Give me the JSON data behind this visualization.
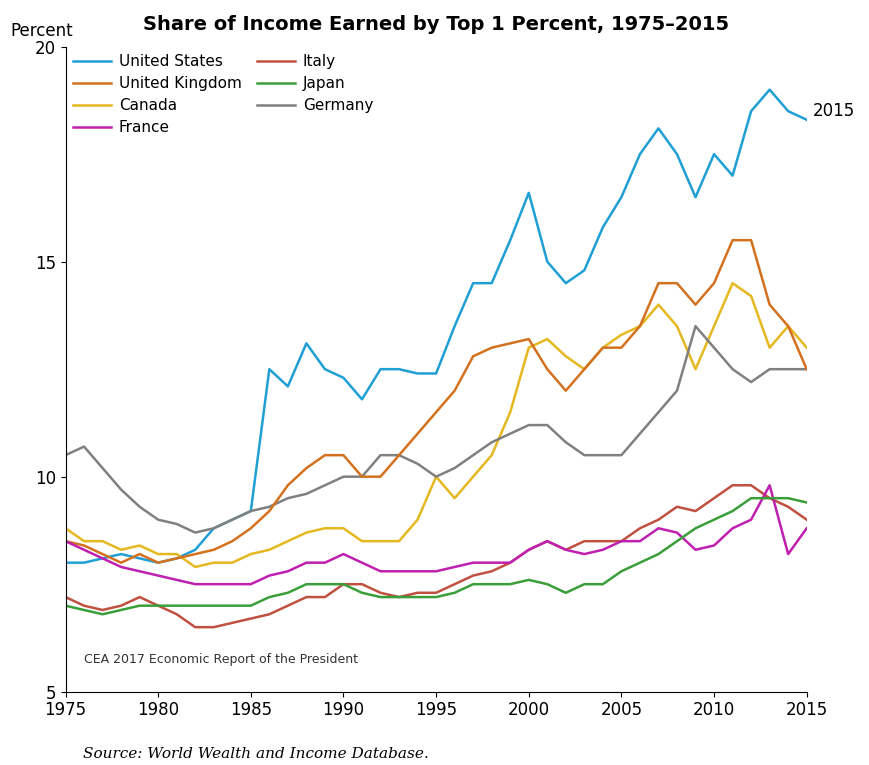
{
  "title": "Share of Income Earned by Top 1 Percent, 1975–2015",
  "ylabel": "Percent",
  "source_text": "Source: World Wealth and Income Database.",
  "watermark": "CEA 2017 Economic Report of the President",
  "annotation_2015": "2015",
  "ylim": [
    5,
    20
  ],
  "yticks": [
    5,
    10,
    15,
    20
  ],
  "xlim": [
    1975,
    2015
  ],
  "xticks": [
    1975,
    1980,
    1985,
    1990,
    1995,
    2000,
    2005,
    2010,
    2015
  ],
  "series": {
    "United States": {
      "color": "#1f9fd4",
      "years": [
        1975,
        1976,
        1977,
        1978,
        1979,
        1980,
        1981,
        1982,
        1983,
        1984,
        1985,
        1986,
        1987,
        1988,
        1989,
        1990,
        1991,
        1992,
        1993,
        1994,
        1995,
        1996,
        1997,
        1998,
        1999,
        2000,
        2001,
        2002,
        2003,
        2004,
        2005,
        2006,
        2007,
        2008,
        2009,
        2010,
        2011,
        2012,
        2013,
        2014,
        2015
      ],
      "values": [
        8.0,
        8.0,
        8.1,
        8.2,
        8.1,
        8.0,
        8.1,
        8.3,
        8.8,
        9.0,
        9.2,
        12.5,
        12.1,
        13.1,
        12.5,
        12.3,
        11.8,
        12.5,
        12.5,
        12.4,
        12.4,
        13.5,
        14.5,
        14.5,
        15.5,
        16.6,
        15.0,
        14.5,
        14.8,
        15.8,
        16.5,
        17.5,
        18.1,
        17.5,
        16.5,
        17.5,
        17.0,
        18.5,
        19.0,
        18.5,
        18.3
      ]
    },
    "United Kingdom": {
      "color": "#d4711f",
      "years": [
        1975,
        1976,
        1977,
        1978,
        1979,
        1980,
        1981,
        1982,
        1983,
        1984,
        1985,
        1986,
        1987,
        1988,
        1989,
        1990,
        1991,
        1992,
        1993,
        1994,
        1995,
        1996,
        1997,
        1998,
        1999,
        2000,
        2001,
        2002,
        2003,
        2004,
        2005,
        2006,
        2007,
        2008,
        2009,
        2010,
        2011,
        2012,
        2013,
        2014,
        2015
      ],
      "values": [
        8.5,
        8.4,
        8.2,
        8.0,
        8.2,
        8.0,
        8.1,
        8.2,
        8.3,
        8.5,
        8.8,
        9.2,
        9.8,
        10.2,
        10.5,
        10.5,
        10.0,
        10.0,
        10.5,
        11.0,
        11.5,
        12.0,
        12.8,
        13.0,
        13.1,
        13.2,
        12.5,
        12.0,
        12.5,
        13.0,
        13.0,
        13.5,
        14.5,
        14.5,
        14.0,
        14.5,
        15.5,
        15.5,
        14.0,
        13.5,
        12.5
      ]
    },
    "Canada": {
      "color": "#e6b820",
      "years": [
        1975,
        1976,
        1977,
        1978,
        1979,
        1980,
        1981,
        1982,
        1983,
        1984,
        1985,
        1986,
        1987,
        1988,
        1989,
        1990,
        1991,
        1992,
        1993,
        1994,
        1995,
        1996,
        1997,
        1998,
        1999,
        2000,
        2001,
        2002,
        2003,
        2004,
        2005,
        2006,
        2007,
        2008,
        2009,
        2010,
        2011,
        2012,
        2013,
        2014,
        2015
      ],
      "values": [
        8.8,
        8.5,
        8.5,
        8.3,
        8.4,
        8.2,
        8.2,
        7.9,
        8.0,
        8.0,
        8.2,
        8.3,
        8.5,
        8.7,
        8.8,
        8.8,
        8.5,
        8.5,
        8.5,
        9.0,
        10.0,
        9.5,
        10.0,
        10.5,
        11.5,
        13.0,
        13.2,
        12.8,
        12.5,
        13.0,
        13.3,
        13.5,
        14.0,
        13.5,
        12.5,
        13.5,
        14.5,
        14.2,
        13.0,
        13.5,
        13.0
      ]
    },
    "France": {
      "color": "#c020b0",
      "years": [
        1975,
        1976,
        1977,
        1978,
        1979,
        1980,
        1981,
        1982,
        1983,
        1984,
        1985,
        1986,
        1987,
        1988,
        1989,
        1990,
        1991,
        1992,
        1993,
        1994,
        1995,
        1996,
        1997,
        1998,
        1999,
        2000,
        2001,
        2002,
        2003,
        2004,
        2005,
        2006,
        2007,
        2008,
        2009,
        2010,
        2011,
        2012,
        2013,
        2014,
        2015
      ],
      "values": [
        8.5,
        8.3,
        8.1,
        7.9,
        7.8,
        7.7,
        7.6,
        7.5,
        7.5,
        7.5,
        7.5,
        7.7,
        7.8,
        8.0,
        8.0,
        8.2,
        8.0,
        7.8,
        7.8,
        7.8,
        7.8,
        7.9,
        8.0,
        8.0,
        8.0,
        8.3,
        8.5,
        8.3,
        8.2,
        8.3,
        8.5,
        8.5,
        8.8,
        8.7,
        8.3,
        8.4,
        8.8,
        9.0,
        9.8,
        8.2,
        8.8
      ]
    },
    "Italy": {
      "color": "#c05040",
      "years": [
        1975,
        1976,
        1977,
        1978,
        1979,
        1980,
        1981,
        1982,
        1983,
        1984,
        1985,
        1986,
        1987,
        1988,
        1989,
        1990,
        1991,
        1992,
        1993,
        1994,
        1995,
        1996,
        1997,
        1998,
        1999,
        2000,
        2001,
        2002,
        2003,
        2004,
        2005,
        2006,
        2007,
        2008,
        2009,
        2010,
        2011,
        2012,
        2013,
        2014,
        2015
      ],
      "values": [
        7.2,
        7.0,
        6.9,
        7.0,
        7.2,
        7.0,
        6.8,
        6.5,
        6.5,
        6.6,
        6.7,
        6.8,
        7.0,
        7.2,
        7.2,
        7.5,
        7.5,
        7.3,
        7.2,
        7.3,
        7.3,
        7.5,
        7.7,
        7.8,
        8.0,
        8.3,
        8.5,
        8.3,
        8.5,
        8.5,
        8.5,
        8.8,
        9.0,
        9.3,
        9.2,
        9.5,
        9.8,
        9.8,
        9.5,
        9.3,
        9.0
      ]
    },
    "Japan": {
      "color": "#3a9e3a",
      "years": [
        1975,
        1976,
        1977,
        1978,
        1979,
        1980,
        1981,
        1982,
        1983,
        1984,
        1985,
        1986,
        1987,
        1988,
        1989,
        1990,
        1991,
        1992,
        1993,
        1994,
        1995,
        1996,
        1997,
        1998,
        1999,
        2000,
        2001,
        2002,
        2003,
        2004,
        2005,
        2006,
        2007,
        2008,
        2009,
        2010,
        2011,
        2012,
        2013,
        2014,
        2015
      ],
      "values": [
        7.0,
        6.9,
        6.8,
        6.9,
        7.0,
        7.0,
        7.0,
        7.0,
        7.0,
        7.0,
        7.0,
        7.2,
        7.3,
        7.5,
        7.5,
        7.5,
        7.3,
        7.2,
        7.2,
        7.2,
        7.2,
        7.3,
        7.5,
        7.5,
        7.5,
        7.6,
        7.5,
        7.3,
        7.5,
        7.5,
        7.8,
        8.0,
        8.2,
        8.5,
        8.8,
        9.0,
        9.2,
        9.5,
        9.5,
        9.5,
        9.4
      ]
    },
    "Germany": {
      "color": "#808080",
      "years": [
        1975,
        1976,
        1977,
        1978,
        1979,
        1980,
        1981,
        1982,
        1983,
        1984,
        1985,
        1986,
        1987,
        1988,
        1989,
        1990,
        1991,
        1992,
        1993,
        1994,
        1995,
        1996,
        1997,
        1998,
        1999,
        2000,
        2001,
        2002,
        2003,
        2004,
        2005,
        2006,
        2007,
        2008,
        2009,
        2010,
        2011,
        2012,
        2013,
        2014,
        2015
      ],
      "values": [
        10.5,
        10.7,
        10.2,
        9.7,
        9.3,
        9.0,
        8.9,
        8.7,
        8.8,
        9.0,
        9.2,
        9.3,
        9.5,
        9.6,
        9.8,
        10.0,
        10.0,
        10.5,
        10.5,
        10.3,
        10.0,
        10.2,
        10.5,
        10.8,
        11.0,
        11.2,
        11.2,
        10.8,
        10.5,
        10.5,
        10.5,
        11.0,
        11.5,
        12.0,
        13.5,
        13.0,
        12.5,
        12.2,
        12.5,
        12.5,
        12.5
      ]
    }
  },
  "legend_col1": [
    "United States",
    "Canada",
    "Italy",
    "Germany"
  ],
  "legend_col2": [
    "United Kingdom",
    "France",
    "Japan"
  ]
}
